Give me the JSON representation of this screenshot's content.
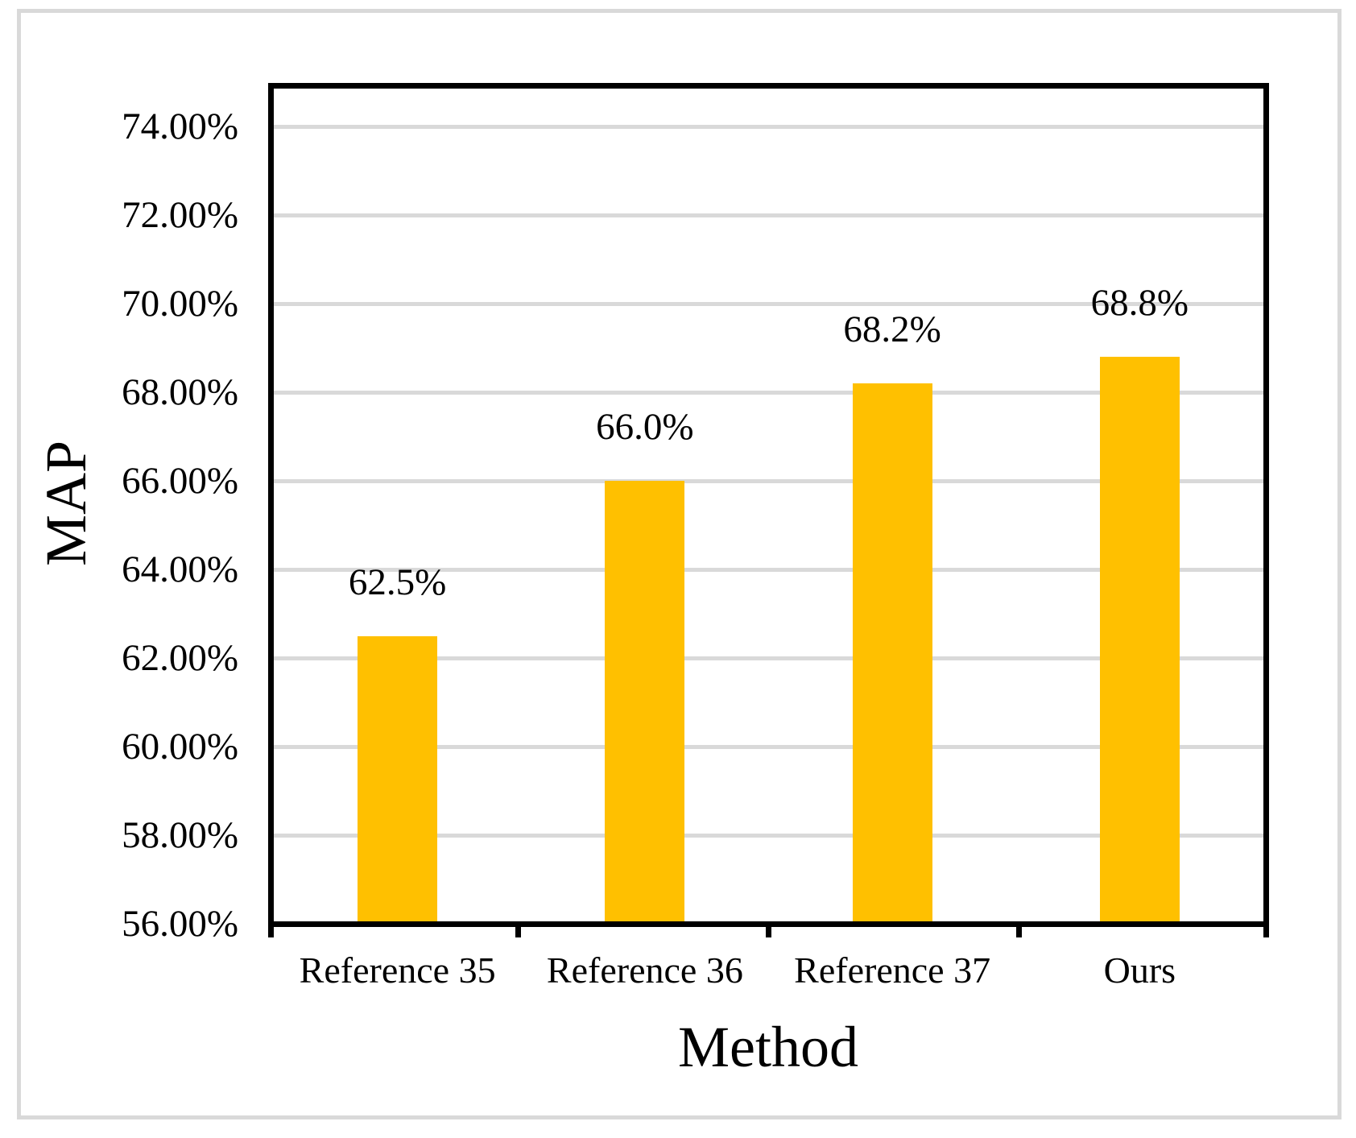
{
  "chart_data": {
    "type": "bar",
    "title": "",
    "xlabel": "Method",
    "ylabel": "MAP",
    "categories": [
      "Reference 35",
      "Reference 36",
      "Reference 37",
      "Ours"
    ],
    "values": [
      62.5,
      66.0,
      68.2,
      68.8
    ],
    "data_labels": [
      "62.5%",
      "66.0%",
      "68.2%",
      "68.8%"
    ],
    "ylim": [
      56,
      75
    ],
    "yticks": [
      56,
      58,
      60,
      62,
      64,
      66,
      68,
      70,
      72,
      74
    ],
    "ytick_labels": [
      "56.00%",
      "58.00%",
      "60.00%",
      "62.00%",
      "64.00%",
      "66.00%",
      "68.00%",
      "70.00%",
      "72.00%",
      "74.00%"
    ],
    "grid": true,
    "legend": false,
    "colors": {
      "bar": "#FFC000",
      "gridline": "#D9D9D9",
      "plot_border": "#000000",
      "outer_frame": "#D9D9D9",
      "text": "#000000",
      "background": "#FFFFFF"
    }
  }
}
